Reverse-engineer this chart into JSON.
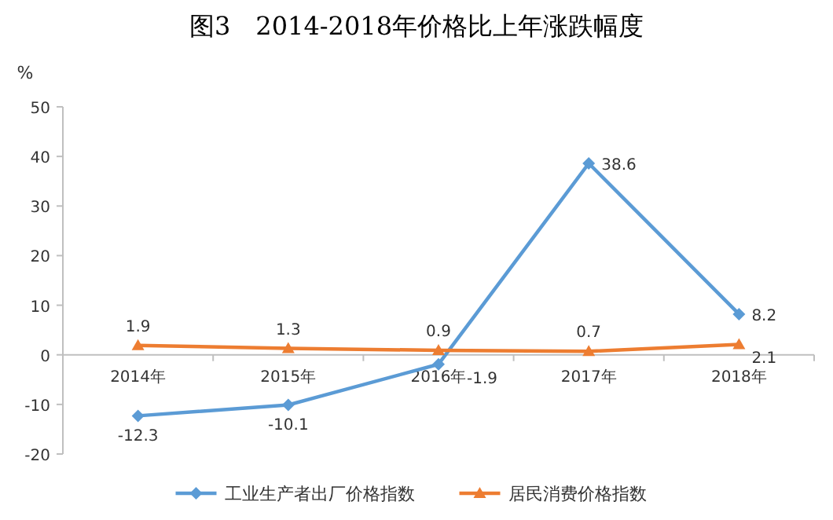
{
  "chart_data": {
    "type": "line",
    "title": "图3　2014-2018年价格比上年涨跌幅度",
    "ylabel": "%",
    "categories": [
      "2014年",
      "2015年",
      "2016年",
      "2017年",
      "2018年"
    ],
    "series": [
      {
        "name": "工业生产者出厂价格指数",
        "color": "#5b9bd5",
        "marker": "diamond",
        "values": [
          -12.3,
          -10.1,
          -1.9,
          38.6,
          8.2
        ]
      },
      {
        "name": "居民消费价格指数",
        "color": "#ed7d31",
        "marker": "triangle",
        "values": [
          1.9,
          1.3,
          0.9,
          0.7,
          2.1
        ]
      }
    ],
    "ylim": [
      -20,
      50
    ],
    "yticks": [
      -20,
      -10,
      0,
      10,
      20,
      30,
      40,
      50
    ],
    "grid": false,
    "legend": "bottom",
    "data_labels": true,
    "line_style": "solid"
  }
}
